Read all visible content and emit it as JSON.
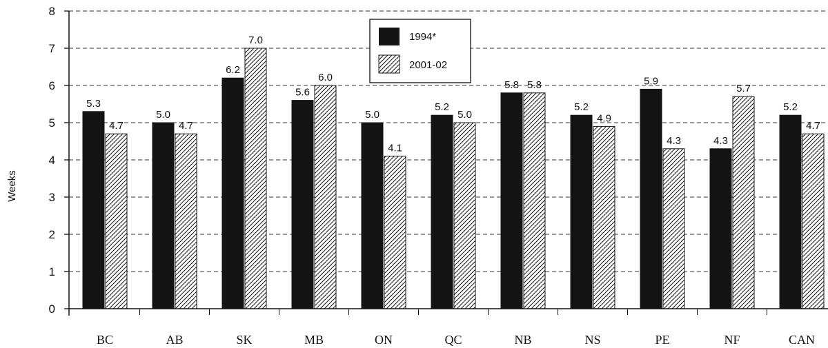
{
  "chart_data": {
    "type": "bar",
    "ylabel": "Weeks",
    "ylim": [
      0,
      8
    ],
    "yticks": [
      "0",
      "1",
      "2",
      "3",
      "4",
      "5",
      "6",
      "7",
      "8"
    ],
    "grid": "dashed horizontal",
    "legend_position": "top-center",
    "categories": [
      "BC",
      "AB",
      "SK",
      "MB",
      "ON",
      "QC",
      "NB",
      "NS",
      "PE",
      "NF",
      "CAN"
    ],
    "series": [
      {
        "name": "1994*",
        "fill": "solid",
        "color": "#141414",
        "values": [
          5.3,
          5.0,
          6.2,
          5.6,
          5.0,
          5.2,
          5.8,
          5.2,
          5.9,
          4.3,
          5.2
        ],
        "labels": [
          "5.3",
          "5.0",
          "6.2",
          "5.6",
          "5.0",
          "5.2",
          "5.8",
          "5.2",
          "5.9",
          "4.3",
          "5.2"
        ]
      },
      {
        "name": "2001-02",
        "fill": "hatched",
        "color": "#141414",
        "values": [
          4.7,
          4.7,
          7.0,
          6.0,
          4.1,
          5.0,
          5.8,
          4.9,
          4.3,
          5.7,
          4.7
        ],
        "labels": [
          "4.7",
          "4.7",
          "7.0",
          "6.0",
          "4.1",
          "5.0",
          "5.8",
          "4.9",
          "4.3",
          "5.7",
          "4.7"
        ]
      }
    ]
  }
}
